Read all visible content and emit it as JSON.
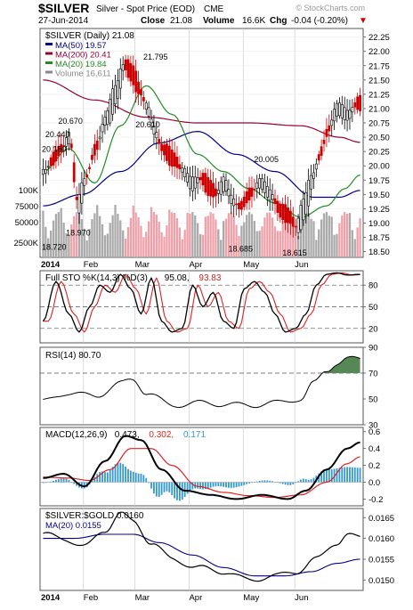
{
  "header": {
    "symbol": "$SILVER",
    "description": "Silver - Spot Price (EOD)",
    "exchange": "CME",
    "watermark": "© StockCharts.com",
    "date": "27-Jun-2014",
    "close_label": "Close",
    "close": "21.08",
    "volume_label": "Volume",
    "volume": "16.6K",
    "chg_label": "Chg",
    "chg": "-0.04 (-0.20%)",
    "chg_arrow": "▼"
  },
  "colors": {
    "up": "#000000",
    "down": "#cc0000",
    "ma50": "#00008b",
    "ma200": "#990033",
    "ma20": "#228b22",
    "vol_up": "#aaaaaa",
    "vol_down": "#f0a0a8",
    "macd_hist": "#3399cc",
    "macd_signal": "#e02020",
    "rsi_fill": "#558855"
  },
  "chart_data": [
    {
      "type": "candlestick",
      "panel": "price",
      "legend": [
        {
          "label": "$SILVER (Daily) 21.08",
          "color": "#000000"
        },
        {
          "label": "MA(50) 19.57",
          "color": "#00008b"
        },
        {
          "label": "MA(200) 20.41",
          "color": "#990033"
        },
        {
          "label": "MA(20) 19.84",
          "color": "#228b22"
        },
        {
          "label": "Volume 16,611",
          "color": "#888888"
        }
      ],
      "x_labels": [
        {
          "label": "2014",
          "i": 0,
          "bold": true
        },
        {
          "label": "Feb",
          "i": 16
        },
        {
          "label": "Mar",
          "i": 36
        },
        {
          "label": "Apr",
          "i": 57
        },
        {
          "label": "May",
          "i": 78
        },
        {
          "label": "Jun",
          "i": 98
        }
      ],
      "n_bars": 124,
      "ylim": [
        18.4,
        22.4
      ],
      "yticks": [
        18.5,
        18.75,
        19.0,
        19.25,
        19.5,
        19.75,
        20.0,
        20.25,
        20.5,
        20.75,
        21.0,
        21.25,
        21.5,
        21.75,
        22.0,
        22.25
      ],
      "vol_ticks": [
        "2500K",
        "50000",
        "75000",
        "100K"
      ],
      "annotations": [
        {
          "label": "20.180",
          "i": 2,
          "y": 20.18
        },
        {
          "label": "20.440",
          "i": 5,
          "y": 20.44
        },
        {
          "label": "20.670",
          "i": 10,
          "y": 20.67
        },
        {
          "label": "18.720",
          "i": 0,
          "y": 18.72
        },
        {
          "label": "18.970",
          "i": 13,
          "y": 18.97
        },
        {
          "label": "21.795",
          "i": 43,
          "y": 21.795
        },
        {
          "label": "20.610",
          "i": 40,
          "y": 20.61
        },
        {
          "label": "20.005",
          "i": 86,
          "y": 20.005
        },
        {
          "label": "18.685",
          "i": 76,
          "y": 18.685
        },
        {
          "label": "18.615",
          "i": 97,
          "y": 18.615
        }
      ],
      "close_anchors": [
        [
          0,
          19.9
        ],
        [
          3,
          20.1
        ],
        [
          7,
          20.3
        ],
        [
          10,
          20.5
        ],
        [
          13,
          19.3
        ],
        [
          16,
          19.8
        ],
        [
          20,
          20.3
        ],
        [
          24,
          20.8
        ],
        [
          28,
          21.3
        ],
        [
          31,
          21.8
        ],
        [
          34,
          21.6
        ],
        [
          37,
          21.3
        ],
        [
          40,
          21.0
        ],
        [
          43,
          20.6
        ],
        [
          46,
          20.3
        ],
        [
          50,
          20.1
        ],
        [
          54,
          19.9
        ],
        [
          57,
          19.7
        ],
        [
          61,
          19.8
        ],
        [
          64,
          19.6
        ],
        [
          67,
          19.5
        ],
        [
          70,
          19.7
        ],
        [
          73,
          19.4
        ],
        [
          76,
          19.3
        ],
        [
          80,
          19.5
        ],
        [
          84,
          19.7
        ],
        [
          88,
          19.5
        ],
        [
          92,
          19.2
        ],
        [
          95,
          19.1
        ],
        [
          98,
          18.9
        ],
        [
          101,
          19.3
        ],
        [
          104,
          19.8
        ],
        [
          107,
          20.2
        ],
        [
          110,
          20.6
        ],
        [
          114,
          21.0
        ],
        [
          118,
          20.9
        ],
        [
          121,
          21.1
        ],
        [
          123,
          21.08
        ]
      ],
      "ma50_anchors": [
        [
          0,
          19.3
        ],
        [
          15,
          19.5
        ],
        [
          30,
          19.9
        ],
        [
          45,
          20.4
        ],
        [
          60,
          20.6
        ],
        [
          75,
          20.2
        ],
        [
          90,
          19.9
        ],
        [
          105,
          19.45
        ],
        [
          115,
          19.45
        ],
        [
          123,
          19.57
        ]
      ],
      "ma200_anchors": [
        [
          0,
          21.5
        ],
        [
          20,
          21.15
        ],
        [
          40,
          20.85
        ],
        [
          60,
          20.75
        ],
        [
          80,
          20.75
        ],
        [
          100,
          20.7
        ],
        [
          115,
          20.5
        ],
        [
          123,
          20.41
        ]
      ],
      "ma20_anchors": [
        [
          0,
          19.9
        ],
        [
          10,
          20.3
        ],
        [
          20,
          19.7
        ],
        [
          30,
          20.7
        ],
        [
          40,
          21.4
        ],
        [
          50,
          20.9
        ],
        [
          60,
          20.2
        ],
        [
          70,
          19.9
        ],
        [
          80,
          19.6
        ],
        [
          90,
          19.35
        ],
        [
          100,
          19.1
        ],
        [
          110,
          19.3
        ],
        [
          117,
          19.6
        ],
        [
          123,
          19.84
        ]
      ]
    },
    {
      "type": "line",
      "panel": "stochastic",
      "legend": [
        {
          "label": "Full STO %K(14,3) %D(3)",
          "color": "#000000"
        },
        {
          "label": "95.08,",
          "color": "#000000"
        },
        {
          "label": "93.83",
          "color": "#e02020"
        }
      ],
      "ylim": [
        0,
        100
      ],
      "yticks": [
        20,
        50,
        80
      ],
      "dashed_levels": [
        20,
        50,
        80
      ],
      "k_anchors": [
        [
          0,
          30
        ],
        [
          5,
          85
        ],
        [
          10,
          40
        ],
        [
          14,
          15
        ],
        [
          18,
          50
        ],
        [
          22,
          80
        ],
        [
          26,
          70
        ],
        [
          30,
          95
        ],
        [
          34,
          75
        ],
        [
          38,
          40
        ],
        [
          42,
          90
        ],
        [
          46,
          30
        ],
        [
          50,
          15
        ],
        [
          54,
          20
        ],
        [
          58,
          80
        ],
        [
          62,
          50
        ],
        [
          66,
          70
        ],
        [
          70,
          30
        ],
        [
          74,
          20
        ],
        [
          78,
          75
        ],
        [
          82,
          85
        ],
        [
          86,
          70
        ],
        [
          90,
          40
        ],
        [
          94,
          15
        ],
        [
          98,
          20
        ],
        [
          102,
          40
        ],
        [
          106,
          80
        ],
        [
          110,
          95
        ],
        [
          114,
          97
        ],
        [
          118,
          94
        ],
        [
          123,
          95
        ]
      ],
      "d_offset_bars": 2
    },
    {
      "type": "line",
      "panel": "rsi",
      "legend": [
        {
          "label": "RSI(14) 80.70",
          "color": "#000000"
        }
      ],
      "ylim": [
        30,
        90
      ],
      "yticks": [
        30,
        50,
        70,
        90
      ],
      "dashed_levels": [
        30,
        70
      ],
      "extra_tick": 30,
      "rsi_anchors": [
        [
          0,
          48
        ],
        [
          10,
          55
        ],
        [
          20,
          52
        ],
        [
          30,
          62
        ],
        [
          35,
          65
        ],
        [
          40,
          55
        ],
        [
          50,
          45
        ],
        [
          60,
          47
        ],
        [
          70,
          46
        ],
        [
          80,
          45
        ],
        [
          90,
          47
        ],
        [
          100,
          50
        ],
        [
          105,
          62
        ],
        [
          110,
          72
        ],
        [
          114,
          78
        ],
        [
          118,
          81
        ],
        [
          123,
          80.7
        ]
      ]
    },
    {
      "type": "line",
      "panel": "macd",
      "legend": [
        {
          "label": "MACD(12,26,9)",
          "color": "#000000"
        },
        {
          "label": "0.473,",
          "color": "#000000"
        },
        {
          "label": "0.302,",
          "color": "#e02020"
        },
        {
          "label": "0.171",
          "color": "#3399cc"
        }
      ],
      "ylim": [
        -0.28,
        0.65
      ],
      "yticks": [
        -0.2,
        0.0,
        0.2,
        0.4,
        0.6
      ],
      "tick_labels": [
        "-0.2",
        "0.0",
        "0.2",
        "0.4",
        "0.6"
      ],
      "macd_anchors": [
        [
          0,
          0.05
        ],
        [
          8,
          0.1
        ],
        [
          16,
          -0.05
        ],
        [
          24,
          0.25
        ],
        [
          32,
          0.55
        ],
        [
          38,
          0.5
        ],
        [
          46,
          0.15
        ],
        [
          55,
          -0.1
        ],
        [
          65,
          -0.15
        ],
        [
          75,
          -0.2
        ],
        [
          85,
          -0.15
        ],
        [
          95,
          -0.2
        ],
        [
          102,
          -0.1
        ],
        [
          110,
          0.15
        ],
        [
          118,
          0.4
        ],
        [
          123,
          0.473
        ]
      ],
      "signal_anchors": [
        [
          0,
          0.06
        ],
        [
          10,
          0.05
        ],
        [
          18,
          0.02
        ],
        [
          26,
          0.15
        ],
        [
          34,
          0.4
        ],
        [
          42,
          0.4
        ],
        [
          50,
          0.2
        ],
        [
          60,
          -0.05
        ],
        [
          70,
          -0.12
        ],
        [
          80,
          -0.16
        ],
        [
          90,
          -0.18
        ],
        [
          100,
          -0.15
        ],
        [
          110,
          0.0
        ],
        [
          118,
          0.22
        ],
        [
          123,
          0.302
        ]
      ]
    },
    {
      "type": "line",
      "panel": "ratio",
      "legend": [
        {
          "label": "$SILVER:$GOLD 0.0160",
          "color": "#000000"
        },
        {
          "label": "MA(20) 0.0155",
          "color": "#00008b"
        }
      ],
      "ylim": [
        0.01475,
        0.01672
      ],
      "yticks": [
        0.015,
        0.0155,
        0.016,
        0.0165
      ],
      "tick_labels": [
        "0.0150",
        "0.0155",
        "0.0160",
        "0.0165"
      ],
      "ratio_anchors": [
        [
          0,
          0.0161
        ],
        [
          8,
          0.016
        ],
        [
          16,
          0.0158
        ],
        [
          24,
          0.0162
        ],
        [
          30,
          0.0166
        ],
        [
          35,
          0.0164
        ],
        [
          42,
          0.0159
        ],
        [
          50,
          0.0155
        ],
        [
          60,
          0.0153
        ],
        [
          70,
          0.0152
        ],
        [
          80,
          0.015
        ],
        [
          90,
          0.0151
        ],
        [
          98,
          0.0152
        ],
        [
          106,
          0.0155
        ],
        [
          114,
          0.0159
        ],
        [
          118,
          0.0161
        ],
        [
          123,
          0.016
        ]
      ],
      "ratio_ma_anchors": [
        [
          0,
          0.016
        ],
        [
          12,
          0.016
        ],
        [
          24,
          0.0161
        ],
        [
          35,
          0.0161
        ],
        [
          45,
          0.0159
        ],
        [
          58,
          0.0156
        ],
        [
          70,
          0.0153
        ],
        [
          82,
          0.0151
        ],
        [
          94,
          0.0151
        ],
        [
          104,
          0.0152
        ],
        [
          114,
          0.0154
        ],
        [
          123,
          0.0155
        ]
      ]
    }
  ]
}
